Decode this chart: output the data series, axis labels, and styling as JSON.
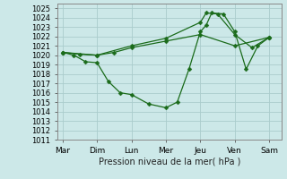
{
  "title": "Pression niveau de la mer( hPa )",
  "bg_color": "#cce8e8",
  "grid_color": "#aacccc",
  "line_color": "#1a6b1a",
  "x_labels": [
    "Mar",
    "Dim",
    "Lun",
    "Mer",
    "Jeu",
    "Ven",
    "Sam"
  ],
  "x_ticks": [
    0,
    1,
    2,
    3,
    4,
    5,
    6
  ],
  "ylim": [
    1011,
    1025.5
  ],
  "yticks": [
    1011,
    1012,
    1013,
    1014,
    1015,
    1016,
    1017,
    1018,
    1019,
    1020,
    1021,
    1022,
    1023,
    1024,
    1025
  ],
  "line1_x": [
    0,
    0.33,
    0.67,
    1.0,
    1.33,
    1.67,
    2.0,
    2.5,
    3.0,
    3.33,
    3.67,
    4.0,
    4.17,
    4.33,
    4.67,
    5.0,
    5.33,
    5.67,
    6.0
  ],
  "line1_y": [
    1020.3,
    1020.0,
    1019.3,
    1019.2,
    1017.2,
    1016.0,
    1015.8,
    1014.8,
    1014.4,
    1015.0,
    1018.5,
    1022.5,
    1023.2,
    1024.5,
    1024.4,
    1022.5,
    1018.5,
    1021.0,
    1021.9
  ],
  "line2_x": [
    0,
    1,
    2,
    3,
    4,
    4.17,
    4.5,
    5.0,
    5.5,
    6.0
  ],
  "line2_y": [
    1020.3,
    1020.0,
    1021.0,
    1021.8,
    1023.5,
    1024.5,
    1024.4,
    1022.2,
    1020.8,
    1021.9
  ],
  "line3_x": [
    0,
    0.5,
    1.0,
    1.5,
    2.0,
    3.0,
    4.0,
    5.0,
    6.0
  ],
  "line3_y": [
    1020.3,
    1020.1,
    1020.0,
    1020.3,
    1020.8,
    1021.5,
    1022.2,
    1021.0,
    1021.9
  ],
  "marker_size": 2.5,
  "linewidth": 0.9
}
